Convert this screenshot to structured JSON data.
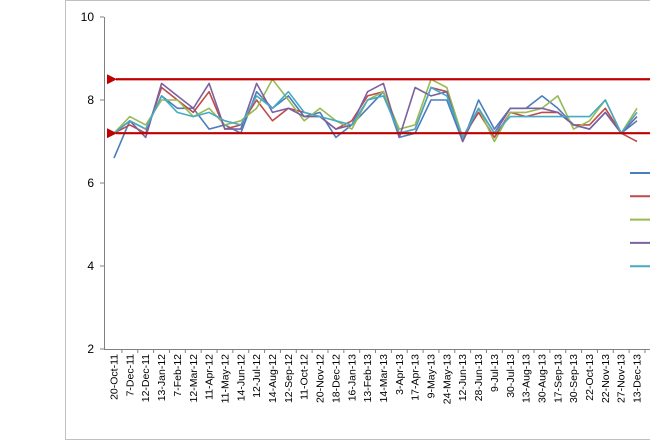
{
  "chart_data": {
    "type": "line",
    "title": "",
    "xlabel": "",
    "ylabel": "",
    "ylim": [
      2,
      10
    ],
    "yticks": [
      2,
      4,
      6,
      8,
      10
    ],
    "grid": false,
    "legend_placement": "right (cropped, no visible labels)",
    "x": [
      "20-Oct-11",
      "7-Dec-11",
      "12-Dec-11",
      "13-Jan-12",
      "7-Feb-12",
      "12-Mar-12",
      "11-Apr-12",
      "11-May-12",
      "14-Jun-12",
      "12-Jul-12",
      "14-Aug-12",
      "12-Sep-12",
      "11-Oct-12",
      "20-Nov-12",
      "18-Dec-12",
      "16-Jan-13",
      "13-Feb-13",
      "14-Mar-13",
      "3-Apr-13",
      "17-Apr-13",
      "9-May-13",
      "24-May-13",
      "12-Jun-13",
      "28-Jun-13",
      "9-Jul-13",
      "30-Jul-13",
      "13-Aug-13",
      "30-Aug-13",
      "17-Sep-13",
      "30-Sep-13",
      "22-Oct-13",
      "22-Nov-13",
      "27-Nov-13",
      "13-Dec-13"
    ],
    "series": [
      {
        "color": "#4a7ebb",
        "values": [
          6.6,
          7.5,
          7.3,
          8.1,
          7.8,
          7.8,
          7.3,
          7.4,
          7.2,
          8.2,
          7.8,
          8.1,
          7.6,
          7.7,
          7.1,
          7.4,
          7.8,
          8.2,
          7.1,
          7.2,
          8.0,
          8.0,
          7.0,
          8.0,
          7.3,
          7.8,
          7.8,
          8.1,
          7.8,
          7.4,
          7.3,
          7.7,
          7.2,
          7.5
        ]
      },
      {
        "color": "#be4b48",
        "values": [
          7.2,
          7.4,
          7.2,
          8.3,
          8.0,
          7.7,
          8.2,
          7.3,
          7.4,
          8.0,
          7.5,
          7.8,
          7.7,
          7.6,
          7.3,
          7.5,
          8.1,
          8.2,
          7.2,
          7.3,
          8.3,
          8.2,
          7.1,
          7.7,
          7.1,
          7.7,
          7.6,
          7.7,
          7.7,
          7.4,
          7.4,
          7.8,
          7.2,
          7.0
        ]
      },
      {
        "color": "#98b954",
        "values": [
          7.2,
          7.6,
          7.4,
          8.0,
          8.0,
          7.6,
          7.8,
          7.4,
          7.5,
          7.8,
          8.5,
          8.0,
          7.5,
          7.8,
          7.5,
          7.3,
          8.0,
          8.2,
          7.3,
          7.4,
          8.5,
          8.3,
          7.1,
          7.8,
          7.0,
          7.7,
          7.7,
          7.8,
          8.1,
          7.3,
          7.5,
          8.0,
          7.2,
          7.8
        ]
      },
      {
        "color": "#7d60a0",
        "values": [
          7.2,
          7.5,
          7.1,
          8.4,
          8.1,
          7.8,
          8.4,
          7.3,
          7.3,
          8.4,
          7.7,
          7.8,
          7.6,
          7.6,
          7.3,
          7.4,
          8.2,
          8.4,
          7.1,
          8.3,
          8.1,
          8.2,
          7.0,
          7.8,
          7.2,
          7.8,
          7.8,
          7.8,
          7.7,
          7.4,
          7.3,
          7.7,
          7.2,
          7.6
        ]
      },
      {
        "color": "#46aac5",
        "values": [
          7.2,
          7.5,
          7.3,
          8.1,
          7.7,
          7.6,
          7.7,
          7.5,
          7.4,
          8.1,
          7.8,
          8.2,
          7.7,
          7.6,
          7.5,
          7.4,
          8.0,
          8.1,
          7.2,
          7.3,
          8.3,
          8.1,
          7.1,
          7.8,
          7.2,
          7.6,
          7.6,
          7.6,
          7.6,
          7.6,
          7.6,
          8.0,
          7.2,
          7.7
        ]
      }
    ],
    "reference_lines": [
      {
        "y": 8.5,
        "color": "#c00000",
        "arrow": "left"
      },
      {
        "y": 7.2,
        "color": "#c00000",
        "arrow": "left"
      }
    ],
    "y_tick_labels": [
      "2",
      "4",
      "6",
      "8",
      "10"
    ]
  }
}
